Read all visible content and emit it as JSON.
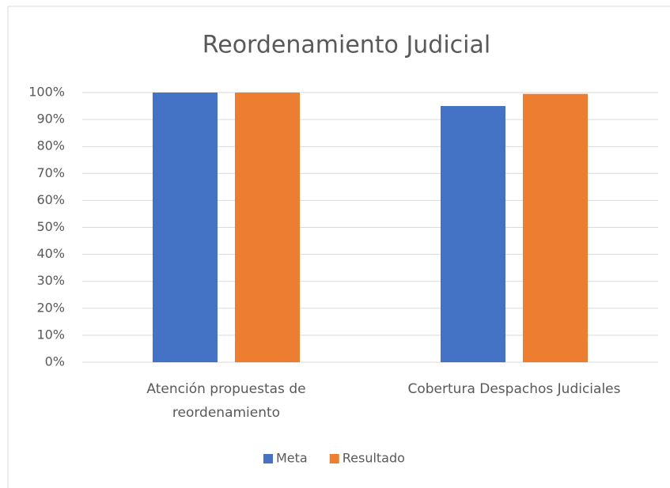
{
  "chart_data": {
    "type": "bar",
    "title": "Reordenamiento Judicial",
    "categories": [
      "Atención propuestas de reordenamiento",
      "Cobertura Despachos Judiciales"
    ],
    "series": [
      {
        "name": "Meta",
        "color": "#4472c4",
        "values": [
          100,
          95
        ]
      },
      {
        "name": "Resultado",
        "color": "#ed7d31",
        "values": [
          100,
          99.5
        ]
      }
    ],
    "ylim": [
      0,
      100
    ],
    "yticks": [
      {
        "value": 0,
        "label": "0%"
      },
      {
        "value": 10,
        "label": "10%"
      },
      {
        "value": 20,
        "label": "20%"
      },
      {
        "value": 30,
        "label": "30%"
      },
      {
        "value": 40,
        "label": "40%"
      },
      {
        "value": 50,
        "label": "50%"
      },
      {
        "value": 60,
        "label": "60%"
      },
      {
        "value": 70,
        "label": "70%"
      },
      {
        "value": 80,
        "label": "80%"
      },
      {
        "value": 90,
        "label": "90%"
      },
      {
        "value": 100,
        "label": "100%"
      }
    ],
    "grid": true,
    "legend": "bottom"
  }
}
